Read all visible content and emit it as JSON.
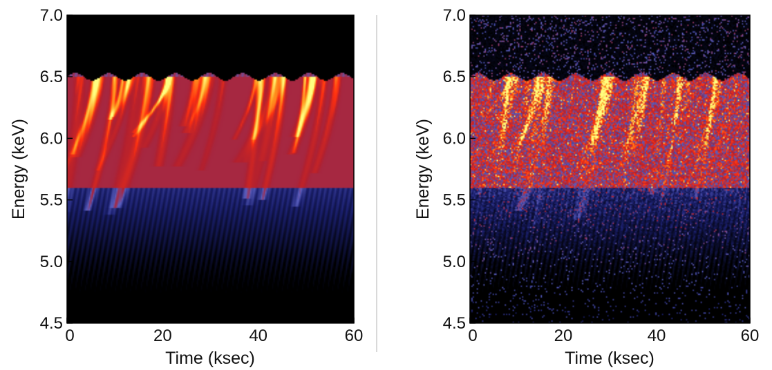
{
  "chart_data": [
    {
      "type": "heatmap",
      "style": "model",
      "xlabel": "Time (ksec)",
      "ylabel": "Energy (keV)",
      "xlim": [
        0,
        60
      ],
      "ylim": [
        4.5,
        7.0
      ],
      "xticks": [
        "0",
        "20",
        "40",
        "60"
      ],
      "yticks": [
        "4.5",
        "5.0",
        "5.5",
        "6.0",
        "6.5",
        "7.0"
      ],
      "colormap": [
        "#000000",
        "#1a1f6e",
        "#5a5fc0",
        "#b02030",
        "#ff3010",
        "#ffa020",
        "#ffff80"
      ],
      "upper_edge_kev": 6.5,
      "grid": false
    },
    {
      "type": "heatmap",
      "style": "simulated-counts",
      "xlabel": "Time (ksec)",
      "ylabel": "Energy (keV)",
      "xlim": [
        0,
        60
      ],
      "ylim": [
        4.5,
        7.0
      ],
      "xticks": [
        "0",
        "20",
        "40",
        "60"
      ],
      "yticks": [
        "4.5",
        "5.0",
        "5.5",
        "6.0",
        "6.5",
        "7.0"
      ],
      "colormap": [
        "#000000",
        "#1a1f6e",
        "#5a5fc0",
        "#b02030",
        "#ff3010",
        "#ffa020",
        "#ffff80"
      ],
      "upper_edge_kev": 6.5,
      "grid": false
    }
  ]
}
